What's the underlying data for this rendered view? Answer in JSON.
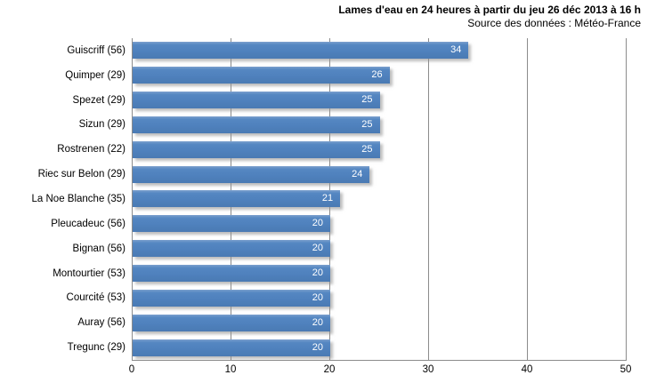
{
  "title": {
    "line1": "Lames d'eau en 24 heures à partir du jeu 26 déc 2013 à 16 h",
    "line2": "Source des données : Météo-France"
  },
  "chart_data": {
    "type": "bar",
    "orientation": "horizontal",
    "title": "Lames d'eau en 24 heures à partir du jeu 26 déc 2013 à 16 h",
    "subtitle": "Source des données : Météo-France",
    "categories": [
      "Guiscriff (56)",
      "Quimper (29)",
      "Spezet (29)",
      "Sizun (29)",
      "Rostrenen (22)",
      "Riec sur Belon (29)",
      "La Noe Blanche (35)",
      "Pleucadeuc (56)",
      "Bignan (56)",
      "Montourtier (53)",
      "Courcité (53)",
      "Auray (56)",
      "Tregunc (29)"
    ],
    "values": [
      34,
      26,
      25,
      25,
      25,
      24,
      21,
      20,
      20,
      20,
      20,
      20,
      20
    ],
    "xlabel": "",
    "ylabel": "",
    "xlim": [
      0,
      50
    ],
    "xticks": [
      0,
      10,
      20,
      30,
      40,
      50
    ],
    "grid": "vertical-on",
    "legend": "none",
    "value_labels": "inside-end"
  },
  "colors": {
    "bar": "#4F81BD",
    "gridline": "#8C8C8C",
    "value_label": "#FFFFFF",
    "text": "#000000",
    "background": "#FFFFFF"
  }
}
